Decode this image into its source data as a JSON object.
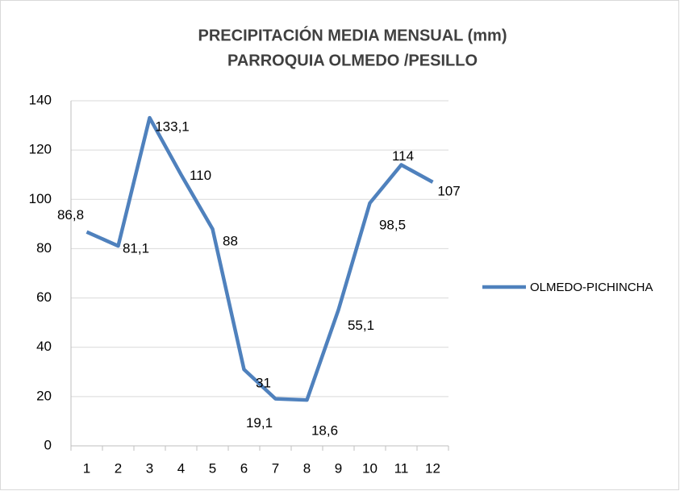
{
  "chart_data": {
    "type": "line",
    "title": "PRECIPITACIÓN MEDIA MENSUAL (mm)",
    "subtitle": "PARROQUIA OLMEDO /PESILLO",
    "categories": [
      "1",
      "2",
      "3",
      "4",
      "5",
      "6",
      "7",
      "8",
      "9",
      "10",
      "11",
      "12"
    ],
    "series": [
      {
        "name": "OLMEDO-PICHINCHA",
        "color": "#4f81bd",
        "values": [
          86.8,
          81.1,
          133.1,
          110,
          88,
          31,
          19.1,
          18.6,
          55.1,
          98.5,
          114,
          107
        ],
        "value_labels": [
          "86,8",
          "81,1",
          "133,1",
          "110",
          "88",
          "31",
          "19,1",
          "18,6",
          "55,1",
          "98,5",
          "114",
          "107"
        ]
      }
    ],
    "ylim": [
      0,
      140
    ],
    "yticks": [
      0,
      20,
      40,
      60,
      80,
      100,
      120,
      140
    ],
    "grid": true,
    "legend": "right"
  }
}
